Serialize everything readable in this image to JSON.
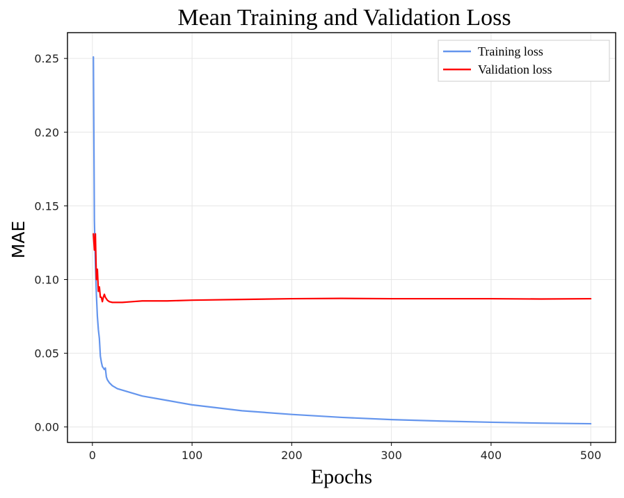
{
  "chart_data": {
    "type": "line",
    "title": "Mean Training and Validation Loss",
    "xlabel": "Epochs",
    "ylabel": "MAE",
    "xlim": [
      -25,
      525
    ],
    "ylim": [
      -0.0105,
      0.2675
    ],
    "grid": true,
    "legend_position": "top-right",
    "xticks": [
      0,
      100,
      200,
      300,
      400,
      500
    ],
    "yticks": [
      0.0,
      0.05,
      0.1,
      0.15,
      0.2,
      0.25
    ],
    "ytick_labels": [
      "0.00",
      "0.05",
      "0.10",
      "0.15",
      "0.20",
      "0.25"
    ],
    "series": [
      {
        "name": "Training loss",
        "color": "#6495ED",
        "x": [
          1,
          2,
          3,
          4,
          5,
          6,
          7,
          8,
          9,
          10,
          11,
          12,
          13,
          14,
          15,
          17,
          20,
          25,
          30,
          40,
          50,
          75,
          100,
          150,
          200,
          250,
          300,
          350,
          400,
          450,
          500
        ],
        "y": [
          0.251,
          0.14,
          0.11,
          0.09,
          0.075,
          0.066,
          0.06,
          0.048,
          0.044,
          0.041,
          0.04,
          0.039,
          0.04,
          0.034,
          0.032,
          0.03,
          0.028,
          0.026,
          0.025,
          0.023,
          0.021,
          0.018,
          0.015,
          0.011,
          0.0085,
          0.0065,
          0.005,
          0.004,
          0.0032,
          0.0026,
          0.0022
        ]
      },
      {
        "name": "Validation loss",
        "color": "#FF0000",
        "x": [
          1,
          2,
          3,
          4,
          5,
          6,
          7,
          8,
          9,
          10,
          11,
          12,
          13,
          14,
          15,
          17,
          20,
          25,
          30,
          40,
          50,
          75,
          100,
          150,
          200,
          250,
          300,
          350,
          400,
          450,
          500
        ],
        "y": [
          0.131,
          0.12,
          0.131,
          0.1,
          0.107,
          0.092,
          0.095,
          0.088,
          0.088,
          0.085,
          0.088,
          0.09,
          0.088,
          0.087,
          0.086,
          0.085,
          0.0845,
          0.0845,
          0.0845,
          0.085,
          0.0855,
          0.0855,
          0.086,
          0.0865,
          0.087,
          0.0872,
          0.087,
          0.087,
          0.087,
          0.0868,
          0.087
        ]
      }
    ]
  }
}
